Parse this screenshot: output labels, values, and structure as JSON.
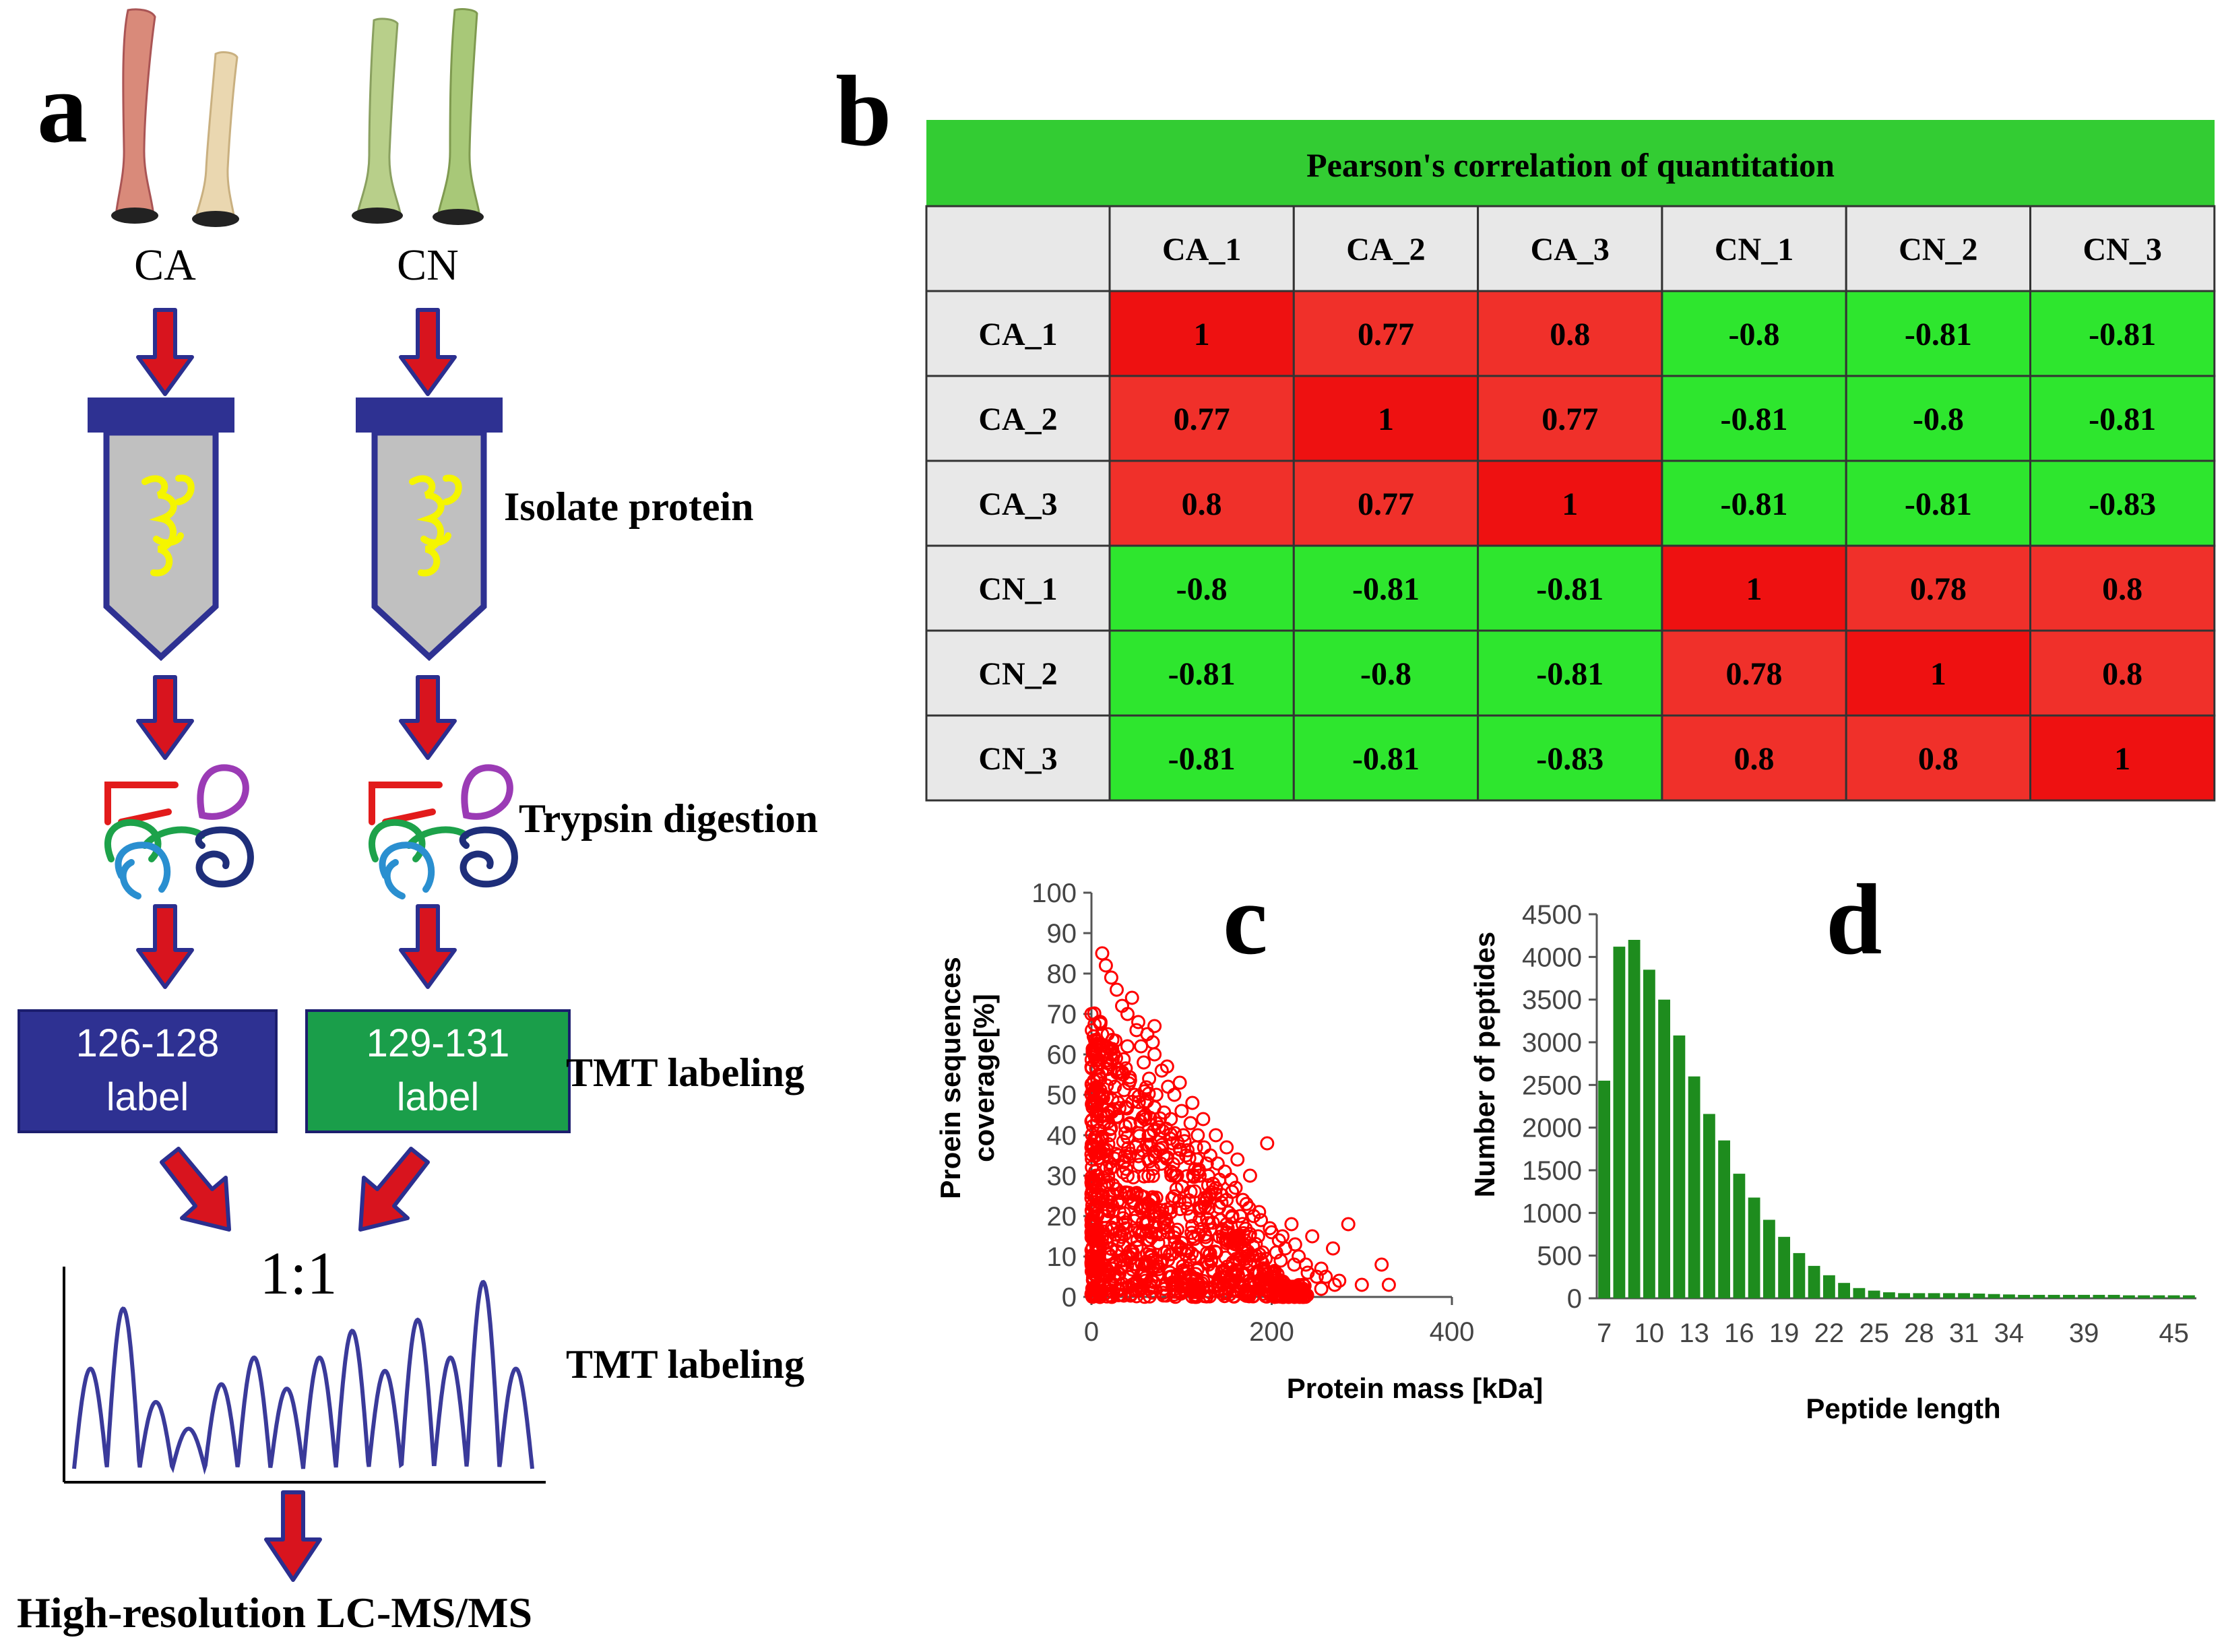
{
  "panel_a": {
    "letter": "a",
    "sample_ca": "CA",
    "sample_cn": "CN",
    "step_isolate": "Isolate protein",
    "step_trypsin": "Trypsin digestion",
    "step_tmt": "TMT labeling",
    "label_ca_line1": "126-128",
    "label_ca_line2": "label",
    "label_cn_line1": "129-131",
    "label_cn_line2": "label",
    "ratio": "1:1",
    "step_tmt2": "TMT labeling",
    "final_step": "High-resolution LC-MS/MS",
    "colors": {
      "arrow": "#d8141e",
      "arrow_outline": "#2b2f8f",
      "tube": "#2b2f8f",
      "tube_fill": "#c0c0c0",
      "label_ca_bg": "#2e3192",
      "label_cn_bg": "#1a9e4a",
      "trace": "#3a3a9a"
    }
  },
  "panel_b": {
    "letter": "b"
  },
  "panel_c": {
    "letter": "c"
  },
  "panel_d": {
    "letter": "d"
  },
  "chart_data": [
    {
      "type": "table",
      "title": "Pearson's correlation of quantitation",
      "columns": [
        "CA_1",
        "CA_2",
        "CA_3",
        "CN_1",
        "CN_2",
        "CN_3"
      ],
      "rows": [
        "CA_1",
        "CA_2",
        "CA_3",
        "CN_1",
        "CN_2",
        "CN_3"
      ],
      "values": [
        [
          "1",
          "0.77",
          "0.8",
          "-0.8",
          "-0.81",
          "-0.81"
        ],
        [
          "0.77",
          "1",
          "0.77",
          "-0.81",
          "-0.8",
          "-0.81"
        ],
        [
          "0.8",
          "0.77",
          "1",
          "-0.81",
          "-0.81",
          "-0.83"
        ],
        [
          "-0.8",
          "-0.81",
          "-0.81",
          "1",
          "0.78",
          "0.8"
        ],
        [
          "-0.81",
          "-0.8",
          "-0.81",
          "0.78",
          "1",
          "0.8"
        ],
        [
          "-0.81",
          "-0.81",
          "-0.83",
          "0.8",
          "0.8",
          "1"
        ]
      ],
      "colors": {
        "positive": "#f0302a",
        "negative": "#2ee62e",
        "header": "#33cc33",
        "cell_bg": "#e8e8e8"
      }
    },
    {
      "type": "scatter",
      "xlabel": "Protein mass [kDa]",
      "ylabel_line1": "Proein sequences",
      "ylabel_line2": "coverage[%]",
      "xlim": [
        0,
        400
      ],
      "ylim": [
        0,
        100
      ],
      "xticks": [
        "0",
        "200",
        "400"
      ],
      "yticks": [
        "0",
        "10",
        "20",
        "30",
        "40",
        "50",
        "60",
        "70",
        "80",
        "90",
        "100"
      ],
      "color": "#ff0000",
      "points": [
        [
          12,
          85
        ],
        [
          16,
          82
        ],
        [
          22,
          79
        ],
        [
          28,
          76
        ],
        [
          34,
          72
        ],
        [
          40,
          70
        ],
        [
          45,
          74
        ],
        [
          50,
          66
        ],
        [
          55,
          62
        ],
        [
          62,
          65
        ],
        [
          70,
          60
        ],
        [
          78,
          56
        ],
        [
          85,
          52
        ],
        [
          92,
          50
        ],
        [
          100,
          46
        ],
        [
          110,
          43
        ],
        [
          118,
          40
        ],
        [
          125,
          37
        ],
        [
          132,
          35
        ],
        [
          140,
          33
        ],
        [
          148,
          31
        ],
        [
          155,
          29
        ],
        [
          160,
          27
        ],
        [
          168,
          24
        ],
        [
          175,
          22
        ],
        [
          180,
          20
        ],
        [
          188,
          19
        ],
        [
          195,
          38
        ],
        [
          200,
          16
        ],
        [
          208,
          14
        ],
        [
          215,
          12
        ],
        [
          222,
          18
        ],
        [
          230,
          10
        ],
        [
          238,
          8
        ],
        [
          245,
          15
        ],
        [
          255,
          7
        ],
        [
          260,
          5
        ],
        [
          268,
          12
        ],
        [
          275,
          4
        ],
        [
          285,
          18
        ],
        [
          300,
          3
        ],
        [
          322,
          8
        ],
        [
          330,
          3
        ],
        [
          60,
          45
        ],
        [
          75,
          42
        ],
        [
          90,
          38
        ],
        [
          105,
          35
        ],
        [
          120,
          30
        ],
        [
          135,
          28
        ],
        [
          150,
          24
        ],
        [
          165,
          20
        ],
        [
          185,
          15
        ],
        [
          205,
          11
        ],
        [
          225,
          8
        ],
        [
          250,
          5
        ],
        [
          270,
          3
        ],
        [
          110,
          26
        ],
        [
          130,
          22
        ],
        [
          150,
          18
        ],
        [
          170,
          14
        ],
        [
          190,
          11
        ],
        [
          210,
          9
        ],
        [
          240,
          6
        ],
        [
          95,
          30
        ],
        [
          80,
          35
        ],
        [
          65,
          40
        ],
        [
          48,
          50
        ],
        [
          35,
          55
        ],
        [
          25,
          60
        ],
        [
          18,
          65
        ],
        [
          10,
          68
        ],
        [
          8,
          55
        ],
        [
          14,
          45
        ],
        [
          20,
          40
        ],
        [
          30,
          35
        ],
        [
          40,
          30
        ],
        [
          55,
          25
        ],
        [
          70,
          20
        ],
        [
          85,
          16
        ],
        [
          100,
          12
        ],
        [
          115,
          10
        ],
        [
          130,
          8
        ],
        [
          145,
          6
        ],
        [
          160,
          5
        ],
        [
          175,
          4
        ],
        [
          195,
          3
        ],
        [
          215,
          2
        ],
        [
          235,
          3
        ],
        [
          255,
          2
        ],
        [
          5,
          30
        ],
        [
          6,
          20
        ],
        [
          9,
          12
        ],
        [
          12,
          8
        ],
        [
          16,
          5
        ],
        [
          22,
          3
        ],
        [
          30,
          2
        ],
        [
          45,
          3
        ],
        [
          60,
          4
        ],
        [
          80,
          2
        ],
        [
          100,
          3
        ],
        [
          120,
          2
        ],
        [
          140,
          3
        ],
        [
          40,
          62
        ],
        [
          58,
          58
        ],
        [
          72,
          50
        ],
        [
          88,
          44
        ],
        [
          102,
          40
        ],
        [
          116,
          37
        ],
        [
          128,
          33
        ],
        [
          142,
          29
        ],
        [
          156,
          26
        ],
        [
          172,
          23
        ],
        [
          186,
          21
        ],
        [
          198,
          17
        ],
        [
          212,
          15
        ],
        [
          226,
          13
        ],
        [
          176,
          30
        ],
        [
          162,
          34
        ],
        [
          150,
          37
        ],
        [
          138,
          40
        ],
        [
          124,
          44
        ],
        [
          112,
          48
        ],
        [
          98,
          53
        ],
        [
          84,
          57
        ],
        [
          68,
          63
        ],
        [
          52,
          68
        ],
        [
          70,
          67
        ],
        [
          64,
          54
        ],
        [
          38,
          47
        ],
        [
          26,
          52
        ]
      ]
    },
    {
      "type": "bar",
      "xlabel": "Peptide length",
      "ylabel": "Number of peptides",
      "ylim": [
        0,
        4500
      ],
      "yticks": [
        "0",
        "500",
        "1000",
        "1500",
        "2000",
        "2500",
        "3000",
        "3500",
        "4000",
        "4500"
      ],
      "xticks": [
        "7",
        "10",
        "13",
        "16",
        "19",
        "22",
        "25",
        "28",
        "31",
        "34",
        "39",
        "45"
      ],
      "color": "#1e8c1e",
      "categories": [
        7,
        8,
        9,
        10,
        11,
        12,
        13,
        14,
        15,
        16,
        17,
        18,
        19,
        20,
        21,
        22,
        23,
        24,
        25,
        26,
        27,
        28,
        29,
        30,
        31,
        32,
        33,
        34,
        35,
        36,
        37,
        38,
        39,
        40,
        41,
        42,
        43,
        44,
        45,
        46
      ],
      "values": [
        2550,
        4120,
        4200,
        3850,
        3500,
        3080,
        2600,
        2160,
        1850,
        1460,
        1180,
        920,
        720,
        530,
        380,
        270,
        180,
        120,
        90,
        70,
        60,
        60,
        60,
        60,
        60,
        55,
        50,
        45,
        40,
        40,
        40,
        40,
        40,
        40,
        40,
        35,
        35,
        35,
        35,
        35
      ]
    }
  ]
}
